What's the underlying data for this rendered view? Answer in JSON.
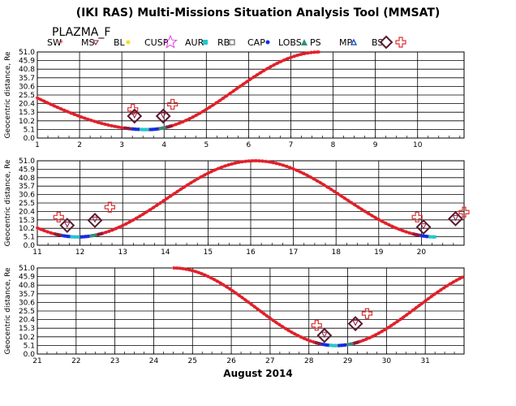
{
  "title": "(IKI RAS) Multi-Missions Situation Analysis Tool (MMSAT)",
  "satellite": "PLAZMA_F",
  "legend": [
    {
      "label": "SW",
      "color": "#e0202a",
      "symbol": "star"
    },
    {
      "label": "MS",
      "color": "#8b1c3c",
      "symbol": "triangle-down"
    },
    {
      "label": "BL",
      "color": "#f0e020",
      "symbol": "dot"
    },
    {
      "label": "CUSP",
      "color": "#e040e0",
      "symbol": "big-star"
    },
    {
      "label": "AUR",
      "color": "#20c8d0",
      "symbol": "square"
    },
    {
      "label": "RB",
      "color": "#808080",
      "symbol": "square-open"
    },
    {
      "label": "CAP",
      "color": "#1030e0",
      "symbol": "dot"
    },
    {
      "label": "LOBS",
      "color": "#309080",
      "symbol": "triangle"
    },
    {
      "label": "PS",
      "color": "#202060",
      "symbol": "none"
    },
    {
      "label": "MP",
      "color": "#1040c0",
      "symbol": "triangle-open"
    },
    {
      "label": "BS",
      "color": "#5a1a2e",
      "symbol": "diamond"
    },
    {
      "label": "",
      "color": "#e03030",
      "symbol": "cross"
    }
  ],
  "ylabel": "Geocentric distance, Re",
  "xlabel": "August 2014",
  "chart_data": [
    {
      "type": "scatter",
      "ylim": [
        0,
        51
      ],
      "yticks": [
        "51.0",
        "45.9",
        "40.8",
        "35.7",
        "30.6",
        "25.5",
        "20.4",
        "15.3",
        "10.2",
        "5.1",
        "0.0"
      ],
      "xlim": [
        1,
        11.1
      ],
      "xticks": [
        "1",
        "2",
        "3",
        "4",
        "5",
        "6",
        "7",
        "8",
        "9",
        "10"
      ],
      "apogee_times": [
        -2.3,
        7.7
      ],
      "perigee_times": [
        3.6
      ],
      "crossings": [
        {
          "t": 3.26,
          "r": 17,
          "marker": "cross"
        },
        {
          "t": 3.3,
          "r": 13,
          "marker": "diamond"
        },
        {
          "t": 3.98,
          "r": 13,
          "marker": "diamond"
        },
        {
          "t": 4.2,
          "r": 20,
          "marker": "cross"
        }
      ]
    },
    {
      "type": "scatter",
      "ylim": [
        0,
        51
      ],
      "yticks": [
        "51.0",
        "45.9",
        "40.8",
        "35.7",
        "30.6",
        "25.5",
        "20.4",
        "15.3",
        "10.2",
        "5.1",
        "0.0"
      ],
      "xlim": [
        11,
        21
      ],
      "xticks": [
        "11",
        "12",
        "13",
        "14",
        "15",
        "16",
        "17",
        "18",
        "19",
        "20"
      ],
      "apogee_times": [
        7.7,
        16.1
      ],
      "perigee_times": [
        11.95,
        20.35
      ],
      "crossings": [
        {
          "t": 11.5,
          "r": 17,
          "marker": "cross"
        },
        {
          "t": 11.7,
          "r": 12,
          "marker": "diamond"
        },
        {
          "t": 12.35,
          "r": 15,
          "marker": "diamond"
        },
        {
          "t": 12.7,
          "r": 23,
          "marker": "cross"
        },
        {
          "t": 19.9,
          "r": 17,
          "marker": "cross"
        },
        {
          "t": 20.05,
          "r": 11,
          "marker": "diamond"
        },
        {
          "t": 20.8,
          "r": 16,
          "marker": "diamond"
        },
        {
          "t": 21.0,
          "r": 20,
          "marker": "cross"
        }
      ]
    },
    {
      "type": "scatter",
      "ylim": [
        0,
        51
      ],
      "yticks": [
        "51.0",
        "45.9",
        "40.8",
        "35.7",
        "30.6",
        "25.5",
        "20.4",
        "15.3",
        "10.2",
        "5.1",
        "0.0"
      ],
      "xlim": [
        21,
        32
      ],
      "xticks": [
        "21",
        "22",
        "23",
        "24",
        "25",
        "26",
        "27",
        "28",
        "29",
        "30",
        "31"
      ],
      "apogee_times": [
        24.5,
        32.9
      ],
      "perigee_times": [
        28.7
      ],
      "crossings": [
        {
          "t": 28.2,
          "r": 17,
          "marker": "cross"
        },
        {
          "t": 28.4,
          "r": 11,
          "marker": "diamond"
        },
        {
          "t": 29.2,
          "r": 18,
          "marker": "diamond"
        },
        {
          "t": 29.5,
          "r": 24,
          "marker": "cross"
        }
      ]
    }
  ]
}
